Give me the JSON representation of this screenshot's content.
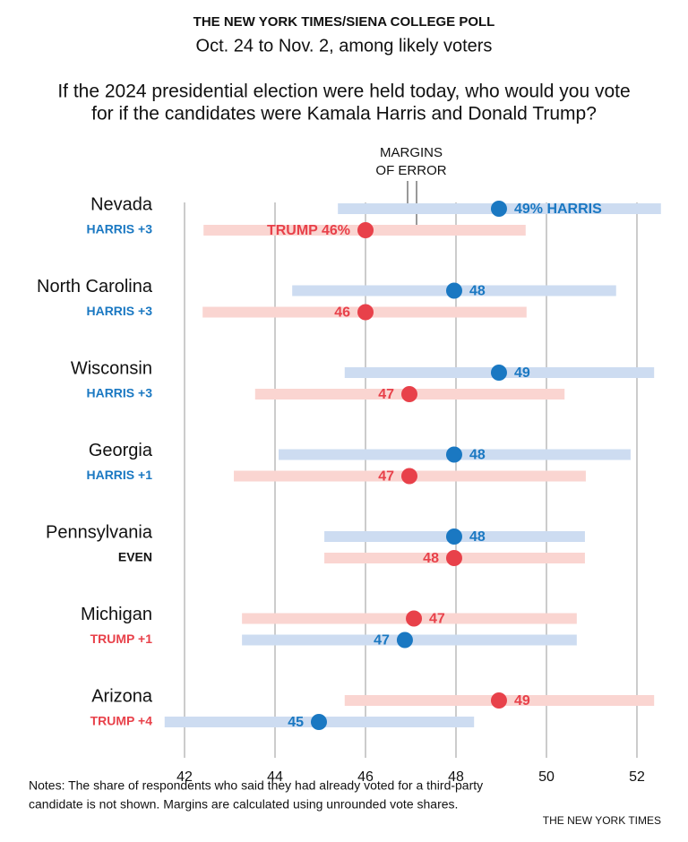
{
  "chart_data": {
    "type": "dot-range",
    "title": "THE NEW YORK TIMES/SIENA COLLEGE POLL",
    "subtitle": "Oct. 24 to Nov. 2, among likely voters",
    "question": [
      "If the 2024 presidential election were held today, who would you vote",
      "for if the candidates were Kamala Harris and Donald Trump?"
    ],
    "annotation": [
      "MARGINS",
      "OF ERROR"
    ],
    "categories": [
      "Nevada",
      "North Carolina",
      "Wisconsin",
      "Georgia",
      "Pennsylvania",
      "Michigan",
      "Arizona"
    ],
    "margin_labels": [
      "HARRIS +3",
      "HARRIS +3",
      "HARRIS +3",
      "HARRIS +1",
      "EVEN",
      "TRUMP +1",
      "TRUMP +4"
    ],
    "margin_colors": [
      "#1a78c2",
      "#1a78c2",
      "#1a78c2",
      "#1a78c2",
      "#111111",
      "#e8414a",
      "#e8414a"
    ],
    "series": [
      {
        "name": "Harris",
        "color": "#1a78c2",
        "range_color": "#cddcf1",
        "values": [
          48.95,
          47.96,
          48.95,
          47.96,
          47.96,
          46.87,
          44.97
        ],
        "value_labels": [
          "49% HARRIS",
          "48",
          "49",
          "48",
          "48",
          "47",
          "45"
        ],
        "low": [
          45.39,
          44.38,
          45.54,
          44.08,
          45.09,
          43.27,
          41.56
        ],
        "high": [
          52.53,
          51.54,
          52.38,
          51.86,
          50.85,
          50.67,
          48.4
        ]
      },
      {
        "name": "Trump",
        "color": "#e8414a",
        "range_color": "#fad5d1",
        "values": [
          46.0,
          46.0,
          46.97,
          46.97,
          47.96,
          47.07,
          48.95
        ],
        "value_labels": [
          "TRUMP 46%",
          "46",
          "47",
          "47",
          "48",
          "47",
          "49"
        ],
        "low": [
          42.42,
          42.4,
          43.56,
          43.09,
          45.09,
          43.27,
          45.54
        ],
        "high": [
          49.54,
          49.56,
          50.4,
          50.87,
          50.85,
          50.67,
          52.38
        ]
      }
    ],
    "xlim": [
      41.4,
      52.7
    ],
    "xticks": [
      42,
      44,
      46,
      48,
      50,
      52
    ],
    "grid": true,
    "notes": [
      "Notes: The share of respondents who said they had already voted for a third-party",
      "candidate is not shown. Margins are calculated using unrounded vote shares."
    ],
    "source": "THE NEW YORK TIMES"
  }
}
